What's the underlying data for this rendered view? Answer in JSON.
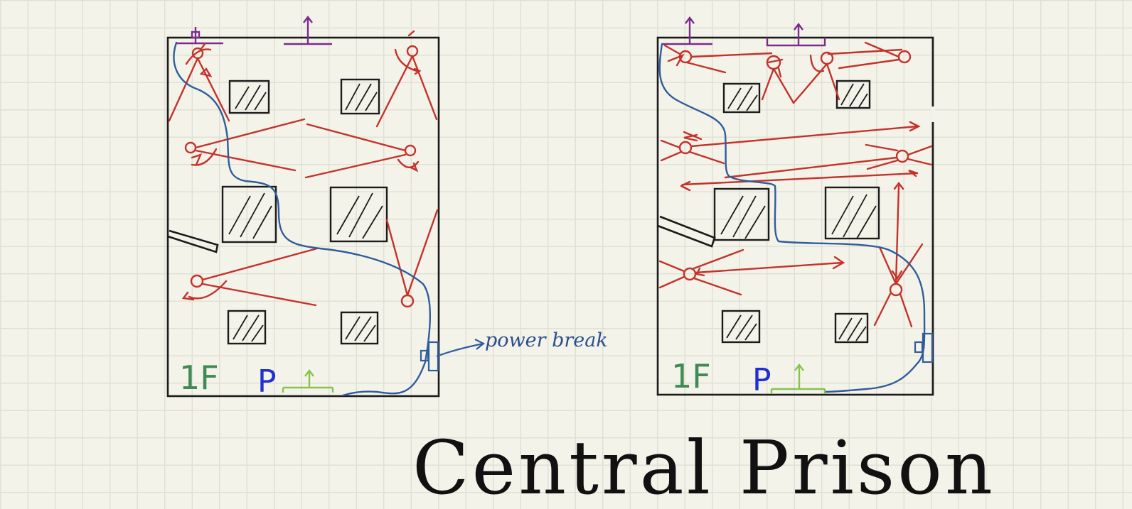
{
  "maps": [
    {
      "floor_label": "1F",
      "flag_label": "P",
      "annotation": "power break"
    },
    {
      "floor_label": "1F",
      "flag_label": "P"
    }
  ],
  "title": "Central Prison",
  "colors": {
    "background": "#f4f3ea",
    "grid": "#dfe0d6",
    "walls": "#1b1b1b",
    "guards": "#c4322a",
    "route": "#2f5d9c",
    "doors": "#7a2b8c",
    "exit": "#86c44a",
    "floor_label": "#3f8a55",
    "flag": "#1f2fd0"
  }
}
